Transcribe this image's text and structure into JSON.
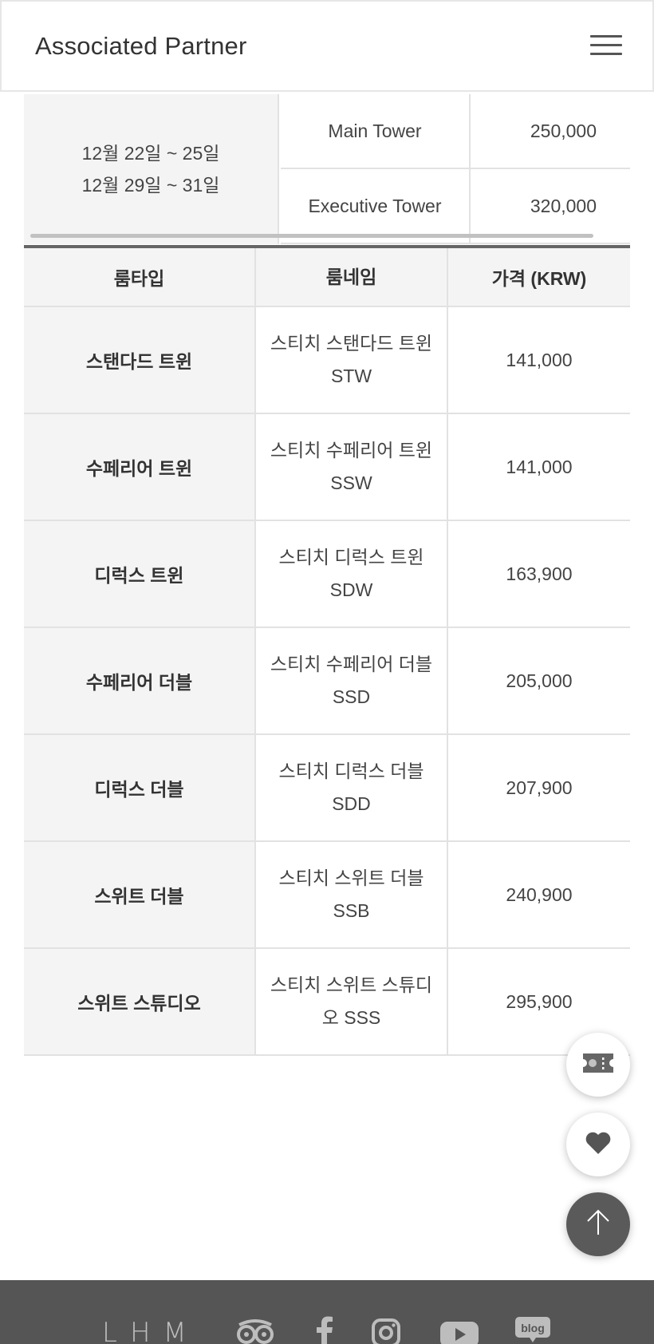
{
  "header": {
    "title": "Associated Partner",
    "menu_icon": "hamburger-menu-icon"
  },
  "upper_table": {
    "period_lines": [
      "12월 22일 ~ 25일",
      "12월 29일 ~ 31일"
    ],
    "rows": [
      {
        "tower": "Main Tower",
        "price": "250,000"
      },
      {
        "tower": "Executive Tower",
        "price": "320,000"
      }
    ]
  },
  "room_table": {
    "headers": [
      "룸타입",
      "룸네임",
      "가격 (KRW)"
    ],
    "rows": [
      {
        "type": "스탠다드 트윈",
        "name": "스티치 스탠다드 트윈 STW",
        "price": "141,000"
      },
      {
        "type": "수페리어 트윈",
        "name": "스티치 수페리어 트윈 SSW",
        "price": "141,000"
      },
      {
        "type": "디럭스 트윈",
        "name": "스티치 디럭스 트윈 SDW",
        "price": "163,900"
      },
      {
        "type": "수페리어 더블",
        "name": "스티치 수페리어 더블 SSD",
        "price": "205,000"
      },
      {
        "type": "디럭스 더블",
        "name": "스티치 디럭스 더블 SDD",
        "price": "207,900"
      },
      {
        "type": "스위트 더블",
        "name": "스티치 스위트 더블 SSB",
        "price": "240,900"
      },
      {
        "type": "스위트 스튜디오",
        "name": "스티치 스위트 스튜디오 SSS",
        "price": "295,900"
      }
    ]
  },
  "floating_buttons": {
    "coupon_icon": "coupon-ticket-icon",
    "wishlist_icon": "heart-icon",
    "top_icon": "arrow-up-icon"
  },
  "footer": {
    "brand": "LHM",
    "social_icons": [
      "tripadvisor-icon",
      "facebook-icon",
      "instagram-icon",
      "youtube-icon",
      "blog-icon"
    ],
    "blog_label": "blog"
  },
  "colors": {
    "header_border": "#e6e6e6",
    "cell_gray": "#f4f4f4",
    "footer_bg": "#555555",
    "fab_top_bg": "#5a5a5a"
  }
}
